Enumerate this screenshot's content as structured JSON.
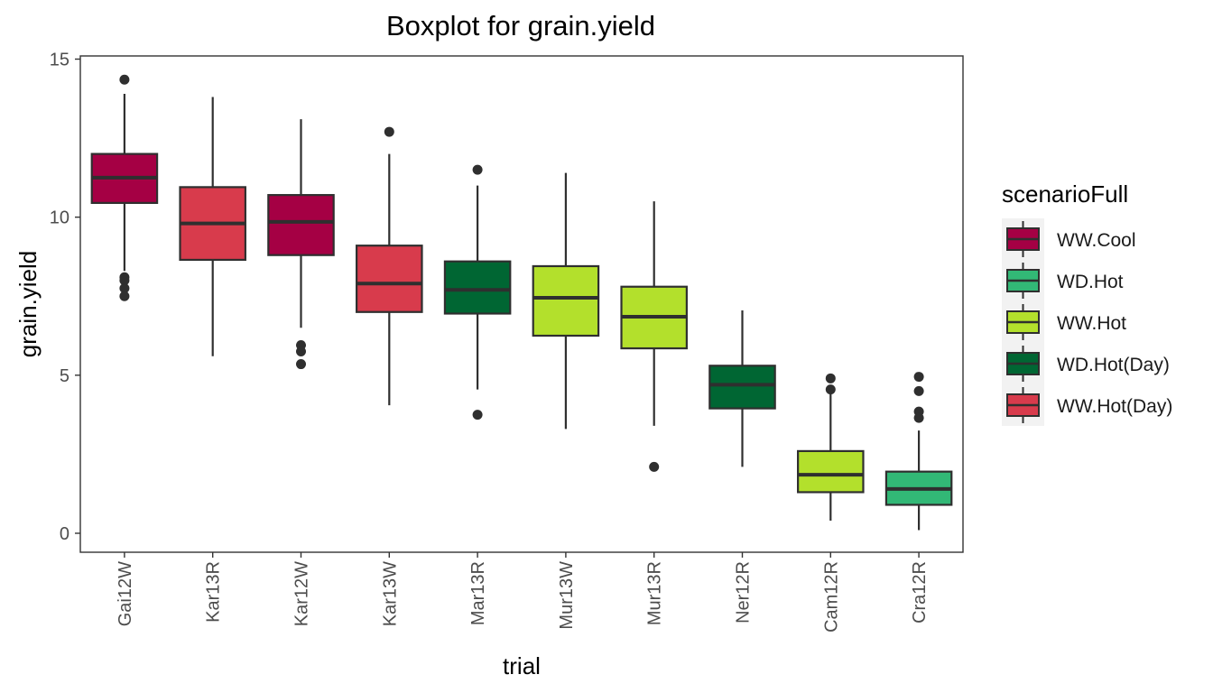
{
  "chart_data": {
    "type": "boxplot",
    "title": "Boxplot for grain.yield",
    "xlabel": "trial",
    "ylabel": "grain.yield",
    "ylim": [
      -0.6,
      15.1
    ],
    "yticks": [
      0,
      5,
      10,
      15
    ],
    "grid": false,
    "legend": {
      "title": "scenarioFull",
      "placement": "right",
      "entries": [
        {
          "label": "WW.Cool",
          "color": "#A50044"
        },
        {
          "label": "WD.Hot",
          "color": "#32B876"
        },
        {
          "label": "WW.Hot",
          "color": "#B3E02C"
        },
        {
          "label": "WD.Hot(Day)",
          "color": "#006633"
        },
        {
          "label": "WW.Hot(Day)",
          "color": "#D83B4C"
        }
      ]
    },
    "categories": [
      "Gai12W",
      "Kar13R",
      "Kar12W",
      "Kar13W",
      "Mar13R",
      "Mur13W",
      "Mur13R",
      "Ner12R",
      "Cam12R",
      "Cra12R"
    ],
    "boxes": [
      {
        "trial": "Gai12W",
        "scenario": "WW.Cool",
        "whisker_low": 8.3,
        "q1": 10.45,
        "median": 11.25,
        "q3": 12.0,
        "whisker_high": 13.9,
        "outliers": [
          14.35,
          8.1,
          8.0,
          7.75,
          7.5
        ]
      },
      {
        "trial": "Kar13R",
        "scenario": "WW.Hot(Day)",
        "whisker_low": 5.6,
        "q1": 8.65,
        "median": 9.8,
        "q3": 10.95,
        "whisker_high": 13.8,
        "outliers": []
      },
      {
        "trial": "Kar12W",
        "scenario": "WW.Cool",
        "whisker_low": 6.5,
        "q1": 8.8,
        "median": 9.85,
        "q3": 10.7,
        "whisker_high": 13.1,
        "outliers": [
          5.95,
          5.75,
          5.35
        ]
      },
      {
        "trial": "Kar13W",
        "scenario": "WW.Hot(Day)",
        "whisker_low": 4.05,
        "q1": 7.0,
        "median": 7.9,
        "q3": 9.1,
        "whisker_high": 12.0,
        "outliers": [
          12.7
        ]
      },
      {
        "trial": "Mar13R",
        "scenario": "WD.Hot(Day)",
        "whisker_low": 4.55,
        "q1": 6.95,
        "median": 7.7,
        "q3": 8.6,
        "whisker_high": 11.0,
        "outliers": [
          11.5,
          3.75
        ]
      },
      {
        "trial": "Mur13W",
        "scenario": "WW.Hot",
        "whisker_low": 3.3,
        "q1": 6.25,
        "median": 7.45,
        "q3": 8.45,
        "whisker_high": 11.4,
        "outliers": []
      },
      {
        "trial": "Mur13R",
        "scenario": "WW.Hot",
        "whisker_low": 3.4,
        "q1": 5.85,
        "median": 6.85,
        "q3": 7.8,
        "whisker_high": 10.5,
        "outliers": [
          2.1
        ]
      },
      {
        "trial": "Ner12R",
        "scenario": "WD.Hot(Day)",
        "whisker_low": 2.1,
        "q1": 3.95,
        "median": 4.7,
        "q3": 5.3,
        "whisker_high": 7.05,
        "outliers": []
      },
      {
        "trial": "Cam12R",
        "scenario": "WW.Hot",
        "whisker_low": 0.4,
        "q1": 1.3,
        "median": 1.85,
        "q3": 2.6,
        "whisker_high": 4.45,
        "outliers": [
          4.9,
          4.55
        ]
      },
      {
        "trial": "Cra12R",
        "scenario": "WD.Hot",
        "whisker_low": 0.1,
        "q1": 0.9,
        "median": 1.4,
        "q3": 1.95,
        "whisker_high": 3.25,
        "outliers": [
          4.95,
          4.5,
          3.85,
          3.65
        ]
      }
    ]
  }
}
